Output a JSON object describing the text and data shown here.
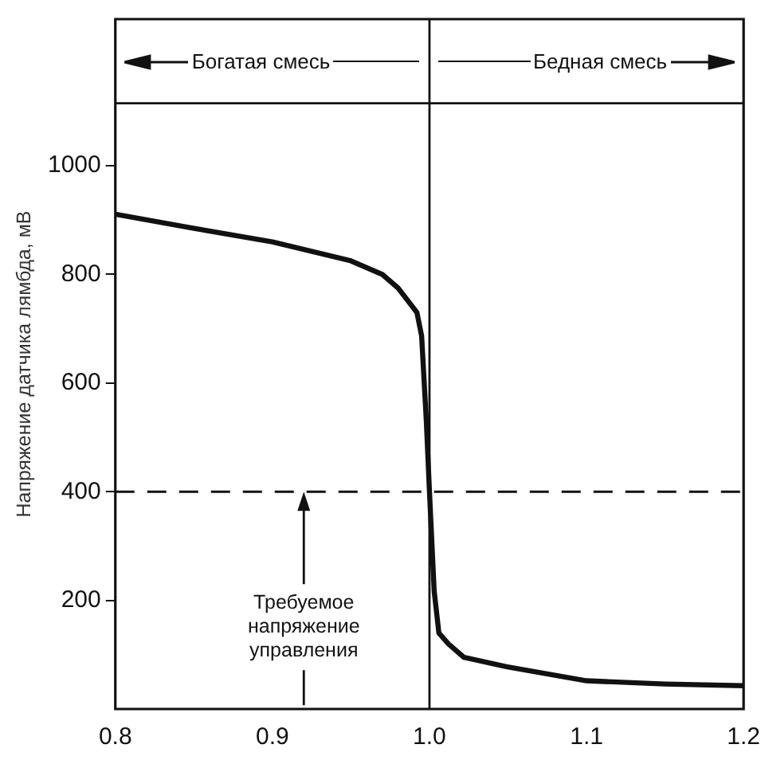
{
  "chart_data": {
    "type": "line",
    "ylabel": "Напряжение датчика лямбда, мВ",
    "x": [
      0.8,
      0.85,
      0.9,
      0.95,
      0.97,
      0.98,
      0.992,
      0.995,
      0.998,
      1.0,
      1.003,
      1.006,
      1.012,
      1.022,
      1.049,
      1.1,
      1.15,
      1.2
    ],
    "series": [
      {
        "color": "#111111",
        "values": [
          911,
          885,
          860,
          825,
          800,
          775,
          730,
          687,
          530,
          400,
          217,
          140,
          120,
          95,
          78,
          52,
          46,
          43
        ]
      }
    ],
    "xlim": [
      0.8,
      1.2
    ],
    "xticks": [
      {
        "value": 0.8,
        "label": "0.8"
      },
      {
        "value": 0.9,
        "label": "0.9"
      },
      {
        "value": 1.0,
        "label": "1.0"
      },
      {
        "value": 1.1,
        "label": "1.1"
      },
      {
        "value": 1.2,
        "label": "1.2"
      }
    ],
    "ylim": [
      0,
      1270
    ],
    "yticks": [
      200,
      400,
      600,
      800,
      1000
    ],
    "ref_lines": [
      {
        "axis": "x",
        "value": 1.0,
        "color": "#111111",
        "line_style": "solid"
      },
      {
        "axis": "y",
        "value": 1115,
        "color": "#111111",
        "line_style": "solid"
      },
      {
        "axis": "y",
        "value": 400,
        "color": "#111111",
        "line_style": "dashed",
        "label": "Требуемое напряжение управления"
      }
    ],
    "annotations": [
      "Богатая смесь",
      "Бедная смесь"
    ],
    "grid": false,
    "legend": false,
    "marker": "none",
    "line_style": "solid"
  }
}
